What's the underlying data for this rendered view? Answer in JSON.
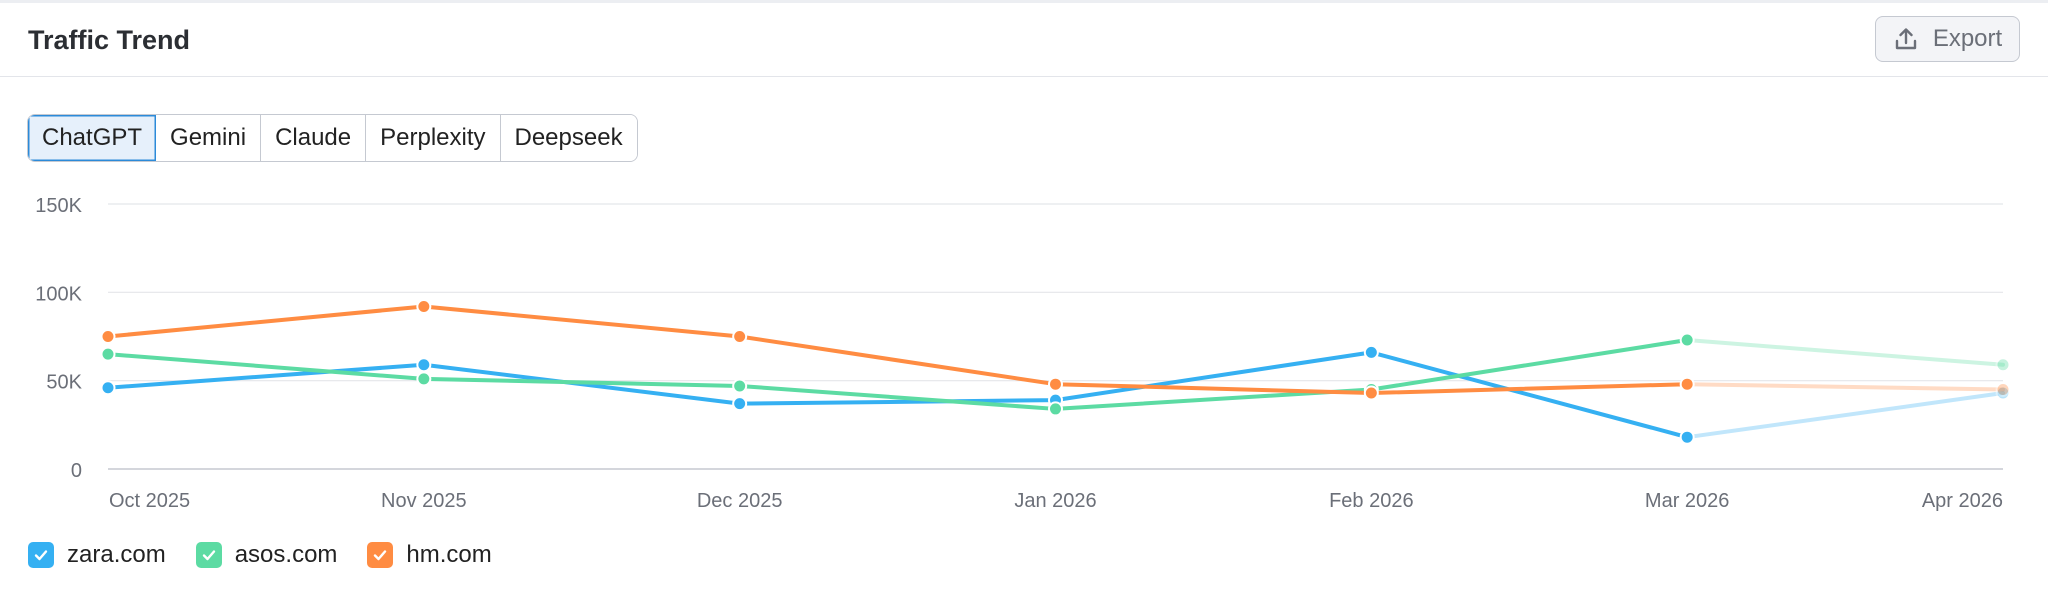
{
  "widget": {
    "title": "Traffic Trend",
    "export_label": "Export",
    "export_icon": "upload-icon"
  },
  "tabs": [
    {
      "label": "ChatGPT",
      "active": true
    },
    {
      "label": "Gemini",
      "active": false
    },
    {
      "label": "Claude",
      "active": false
    },
    {
      "label": "Perplexity",
      "active": false
    },
    {
      "label": "Deepseek",
      "active": false
    }
  ],
  "colors": {
    "zara.com": "#35b0f2",
    "asos.com": "#5cdba3",
    "hm.com": "#ff8c42",
    "grid": "#e4e6ea",
    "axis": "#c5c9d1",
    "tick_text": "#6b6f78"
  },
  "chart_data": {
    "type": "line",
    "x": [
      "Oct 2025",
      "Nov 2025",
      "Dec 2025",
      "Jan 2026",
      "Feb 2026",
      "Mar 2026",
      "Apr 2026"
    ],
    "ylim": [
      0,
      150000
    ],
    "yticks": [
      {
        "value": 0,
        "label": "0"
      },
      {
        "value": 50000,
        "label": "50K"
      },
      {
        "value": 100000,
        "label": "100K"
      },
      {
        "value": 150000,
        "label": "150K"
      }
    ],
    "grid": true,
    "legend_position": "bottom-left",
    "last_point_incomplete": true,
    "series": [
      {
        "name": "zara.com",
        "values": [
          46000,
          59000,
          37000,
          39000,
          66000,
          18000,
          43000
        ]
      },
      {
        "name": "asos.com",
        "values": [
          65000,
          51000,
          47000,
          34000,
          45000,
          73000,
          59000
        ]
      },
      {
        "name": "hm.com",
        "values": [
          75000,
          92000,
          75000,
          48000,
          43000,
          48000,
          45000
        ]
      }
    ]
  }
}
